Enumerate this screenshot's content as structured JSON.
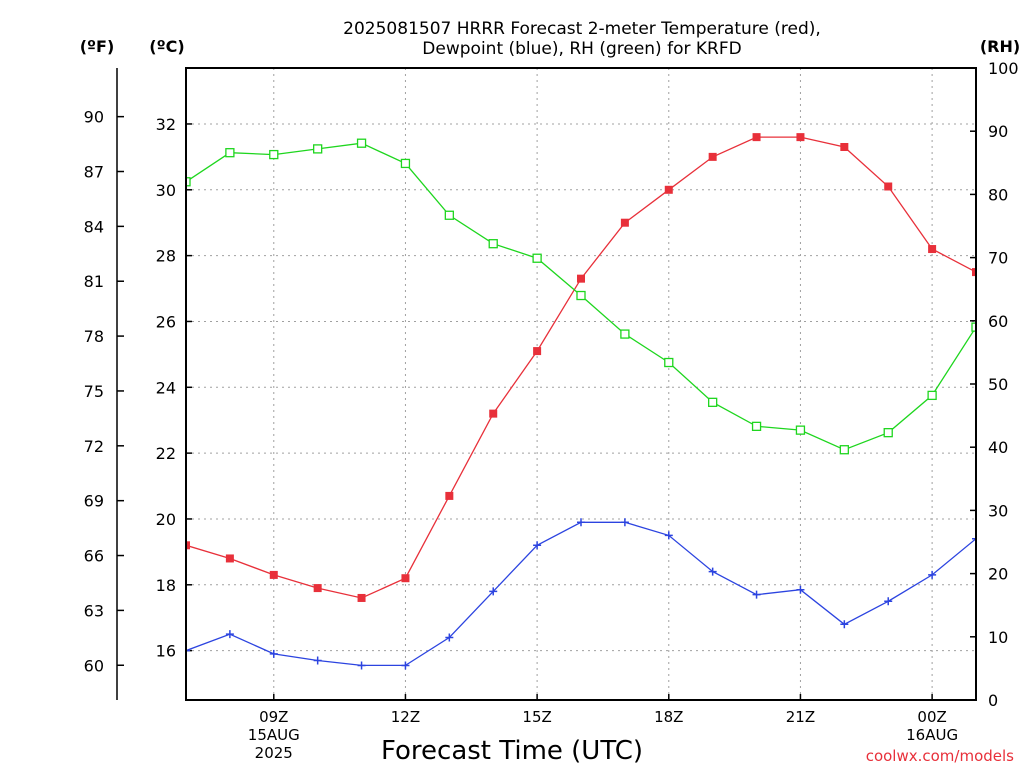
{
  "chart_data": {
    "type": "line",
    "title_lines": [
      "2025081507 HRRR Forecast 2-meter Temperature (red),",
      "Dewpoint (blue), RH (green) for KRFD"
    ],
    "xlabel": "Forecast Time (UTC)",
    "credit": "coolwx.com/models",
    "units": {
      "left_outer": "(ºF)",
      "left_inner": "(ºC)",
      "right": "(RH)"
    },
    "x_hours_utc": [
      7,
      8,
      9,
      10,
      11,
      12,
      13,
      14,
      15,
      16,
      17,
      18,
      19,
      20,
      21,
      22,
      23,
      24,
      25
    ],
    "x_range": [
      7,
      25
    ],
    "x_ticks": [
      {
        "hour": 9,
        "lines": [
          "09Z",
          "15AUG",
          "2025"
        ]
      },
      {
        "hour": 12,
        "lines": [
          "12Z"
        ]
      },
      {
        "hour": 15,
        "lines": [
          "15Z"
        ]
      },
      {
        "hour": 18,
        "lines": [
          "18Z"
        ]
      },
      {
        "hour": 21,
        "lines": [
          "21Z"
        ]
      },
      {
        "hour": 24,
        "lines": [
          "00Z",
          "16AUG"
        ]
      }
    ],
    "celsius_range": [
      14.5,
      33.7
    ],
    "celsius_ticks": [
      "16",
      "18",
      "20",
      "22",
      "24",
      "26",
      "28",
      "30",
      "32"
    ],
    "fahrenheit_ticks": [
      "60",
      "63",
      "66",
      "69",
      "72",
      "75",
      "78",
      "81",
      "84",
      "87",
      "90"
    ],
    "rh_range": [
      0,
      100
    ],
    "rh_ticks": [
      "0",
      "10",
      "20",
      "30",
      "40",
      "50",
      "60",
      "70",
      "80",
      "90",
      "100"
    ],
    "grid": true,
    "series": [
      {
        "name": "Temperature",
        "axis": "celsius",
        "color": "#e8303a",
        "marker": "filled-square",
        "values": [
          19.2,
          18.8,
          18.3,
          17.9,
          17.6,
          18.2,
          20.7,
          23.2,
          25.1,
          27.3,
          29.0,
          30.0,
          31.0,
          31.6,
          31.6,
          31.3,
          30.1,
          28.2,
          27.5
        ]
      },
      {
        "name": "Dewpoint",
        "axis": "celsius",
        "color": "#2c44e0",
        "marker": "plus",
        "values": [
          16.0,
          16.5,
          15.9,
          15.7,
          15.55,
          15.55,
          16.4,
          17.8,
          19.2,
          19.9,
          19.9,
          19.5,
          18.4,
          17.7,
          17.85,
          16.8,
          17.5,
          18.3,
          19.4
        ]
      },
      {
        "name": "RH",
        "axis": "rh",
        "color": "#1ed61e",
        "marker": "open-square",
        "values": [
          82,
          86.6,
          86.3,
          87.2,
          88.1,
          84.9,
          76.7,
          72.2,
          69.9,
          64.0,
          57.9,
          53.4,
          47.1,
          43.3,
          42.7,
          39.6,
          42.3,
          48.2,
          59.0
        ]
      }
    ]
  }
}
